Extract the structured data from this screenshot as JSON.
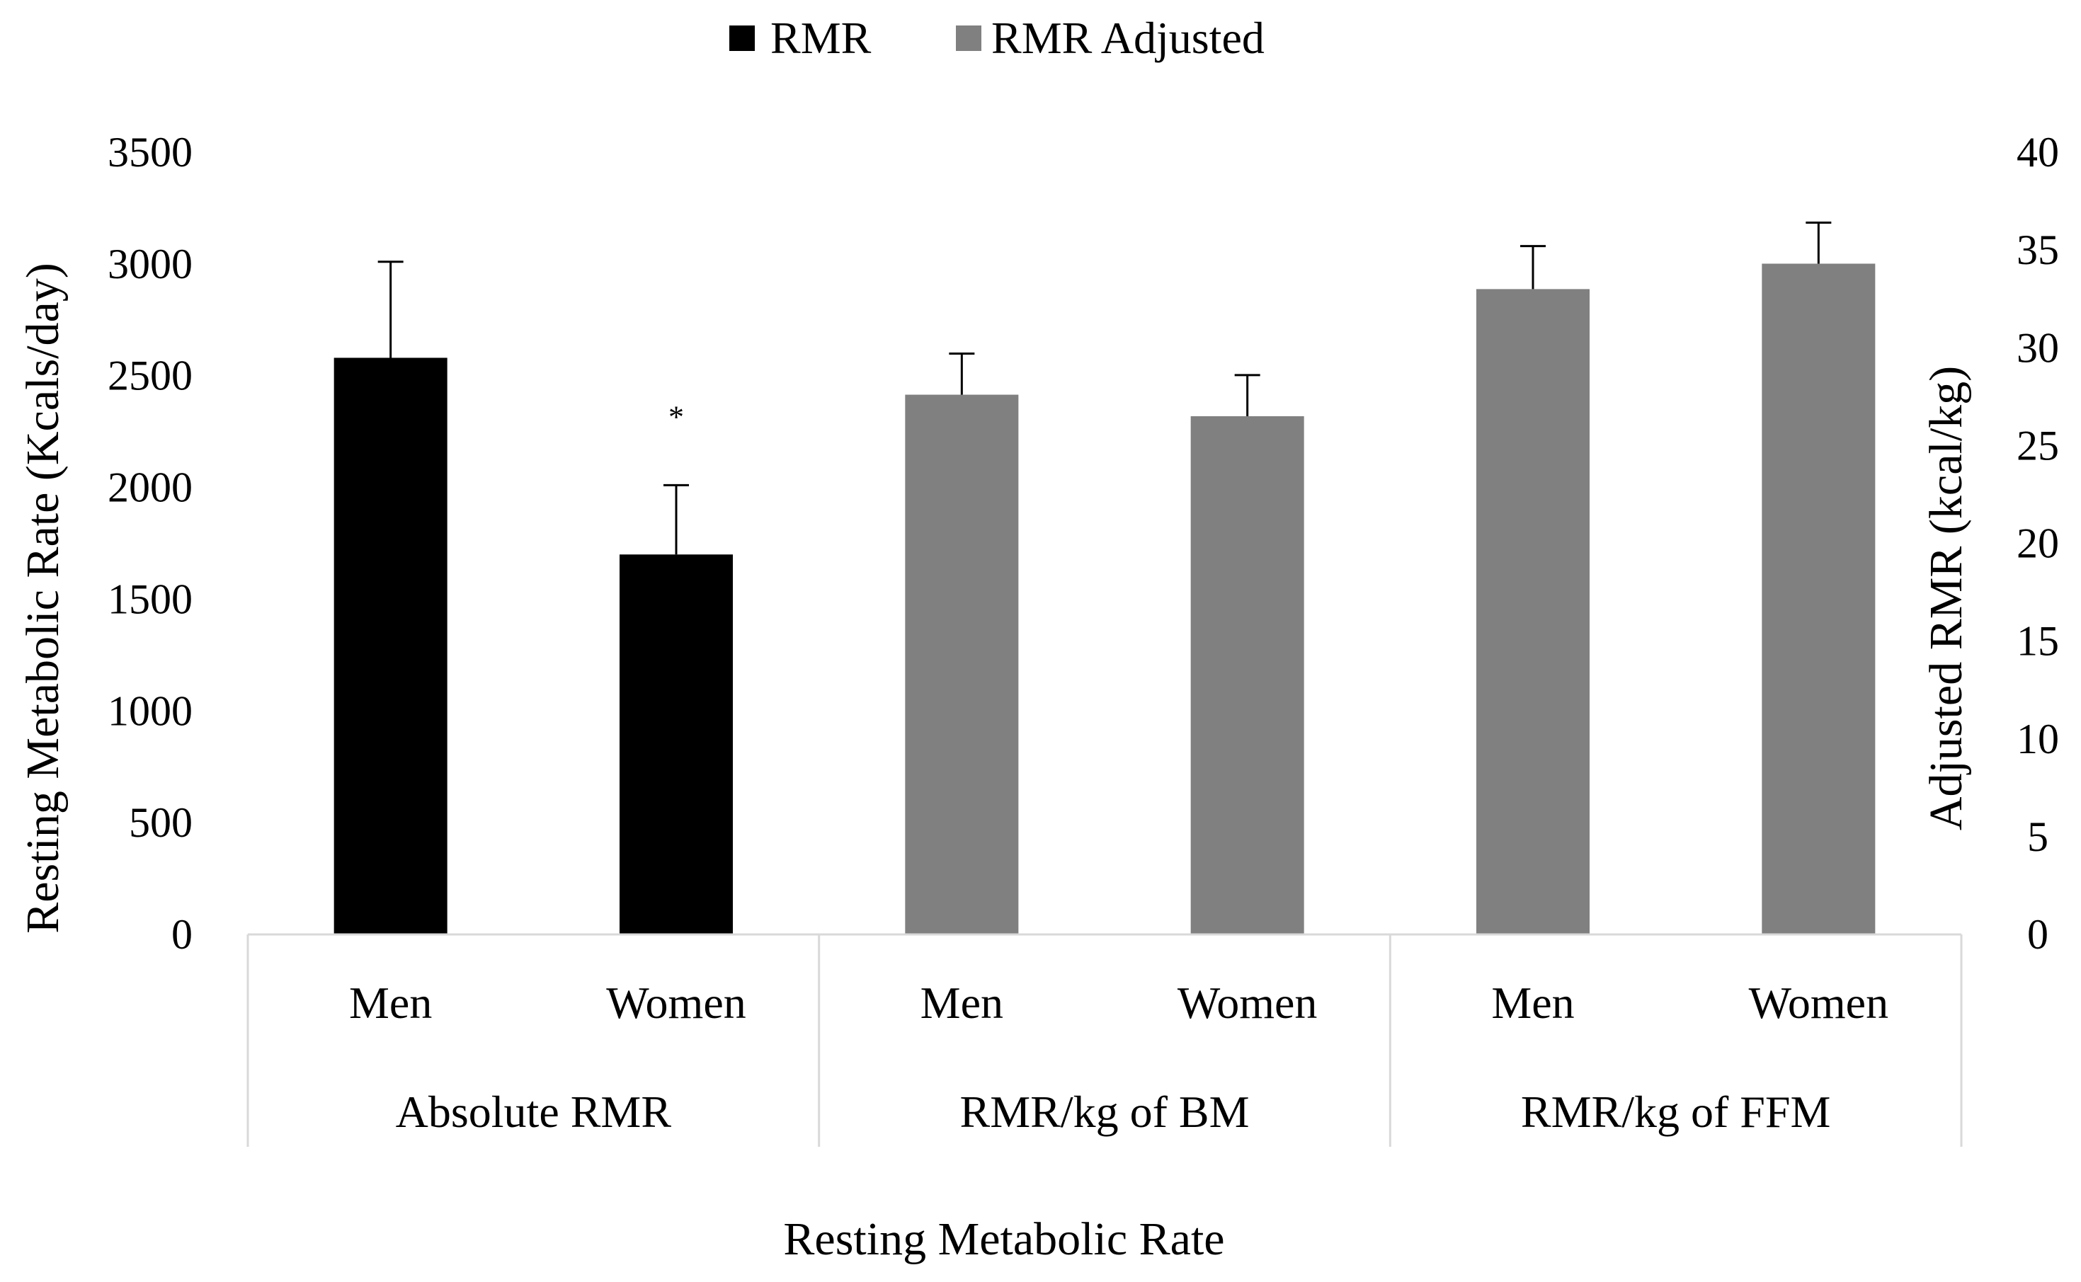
{
  "chart_data": {
    "type": "bar",
    "title": "",
    "xlabel": "Resting Metabolic Rate",
    "ylabel": "Resting Metabolic Rate (Kcals/day)",
    "y2label": "Adjusted RMR (kcal/kg)",
    "ylim": [
      0,
      3500
    ],
    "y2lim": [
      0,
      40
    ],
    "yticks": [
      "0",
      "500",
      "1000",
      "1500",
      "2000",
      "2500",
      "3000",
      "3500"
    ],
    "y2ticks": [
      "0",
      "5",
      "10",
      "15",
      "20",
      "25",
      "30",
      "35",
      "40"
    ],
    "groups": [
      "Absolute RMR",
      "RMR/kg of BM",
      "RMR/kg of FFM"
    ],
    "categories": [
      "Men",
      "Women",
      "Men",
      "Women",
      "Men",
      "Women"
    ],
    "legend": [
      {
        "name": "RMR",
        "color": "#000000"
      },
      {
        "name": "RMR Adjusted",
        "color": "#808080"
      }
    ],
    "bars": [
      {
        "group": "Absolute RMR",
        "category": "Men",
        "series": "RMR",
        "axis": "left",
        "value": 2580,
        "error": 430,
        "annotation": ""
      },
      {
        "group": "Absolute RMR",
        "category": "Women",
        "series": "RMR",
        "axis": "left",
        "value": 1700,
        "error": 310,
        "annotation": "*"
      },
      {
        "group": "RMR/kg of BM",
        "category": "Men",
        "series": "RMR Adjusted",
        "axis": "right",
        "value": 27.6,
        "error": 2.1,
        "annotation": ""
      },
      {
        "group": "RMR/kg of BM",
        "category": "Women",
        "series": "RMR Adjusted",
        "axis": "right",
        "value": 26.5,
        "error": 2.1,
        "annotation": ""
      },
      {
        "group": "RMR/kg of FFM",
        "category": "Men",
        "series": "RMR Adjusted",
        "axis": "right",
        "value": 33.0,
        "error": 2.2,
        "annotation": ""
      },
      {
        "group": "RMR/kg of FFM",
        "category": "Women",
        "series": "RMR Adjusted",
        "axis": "right",
        "value": 34.3,
        "error": 2.1,
        "annotation": ""
      }
    ]
  }
}
